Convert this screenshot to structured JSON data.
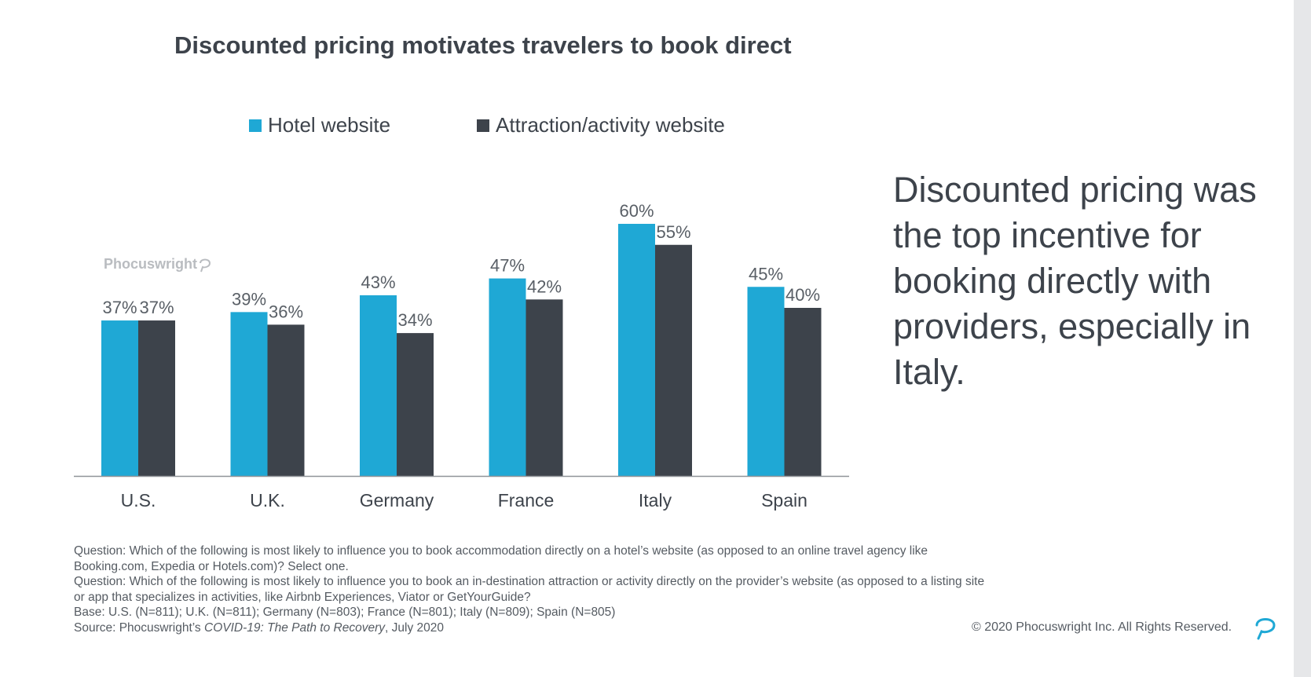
{
  "chart_data": {
    "type": "bar",
    "title": "Discounted pricing motivates travelers to book direct",
    "categories": [
      "U.S.",
      "U.K.",
      "Germany",
      "France",
      "Italy",
      "Spain"
    ],
    "series": [
      {
        "name": "Hotel website",
        "values": [
          37,
          39,
          43,
          47,
          60,
          45
        ],
        "labels": [
          "37%",
          "39%",
          "43%",
          "47%",
          "60%",
          "45%"
        ],
        "color": "#1fa8d5"
      },
      {
        "name": "Attraction/activity website",
        "values": [
          37,
          36,
          34,
          42,
          55,
          40
        ],
        "labels": [
          "37%",
          "36%",
          "34%",
          "42%",
          "55%",
          "40%"
        ],
        "color": "#3d434b"
      }
    ],
    "ylim": [
      0,
      60
    ],
    "xlabel": "",
    "ylabel": "",
    "grid": false,
    "legend": "top"
  },
  "watermark": "Phocuswright",
  "callout": "Discounted pricing was the top incentive for booking directly with providers, especially in Italy.",
  "notes": {
    "q1": "Question: Which of the following is most likely to influence you to book accommodation directly on a hotel’s website (as opposed to an online travel agency like Booking.com, Expedia or Hotels.com)? Select one.",
    "q2": "Question: Which of the following is most likely to influence you to book an in-destination attraction or activity directly on the provider’s website (as opposed to a listing site or app that specializes in activities, like Airbnb Experiences, Viator or GetYourGuide?",
    "base": "Base: U.S. (N=811); U.K. (N=811); Germany (N=803); France (N=801); Italy (N=809); Spain (N=805)",
    "source_prefix": "Source: Phocuswright’s ",
    "source_title": "COVID-19: The Path to Recovery",
    "source_suffix": ", July 2020"
  },
  "copyright": "© 2020 Phocuswright Inc. All Rights Reserved.",
  "icons": {
    "watermark_mark": "speech-bubble-icon",
    "logo": "phocuswright-logo-icon"
  }
}
